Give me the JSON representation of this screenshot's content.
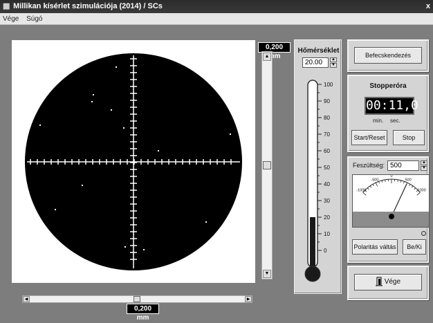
{
  "window": {
    "title": "Millikan kísérlet szimulációja (2014)  /  SCs",
    "close_glyph": "x"
  },
  "menu": {
    "items": [
      "Vége",
      "Súgó"
    ]
  },
  "scale_labels": {
    "vertical": "0,200 mm",
    "horizontal": "0,200 mm"
  },
  "temperature": {
    "title": "Hőmérséklet",
    "value": "20.00",
    "ticks": [
      "100",
      "90",
      "80",
      "70",
      "60",
      "50",
      "40",
      "30",
      "20",
      "10",
      "0"
    ],
    "level": 20
  },
  "calibration": {
    "button_label": "Befecskendezés"
  },
  "stopwatch": {
    "title": "Stopperóra",
    "display": "00:11,0",
    "min_label": "min.",
    "sec_label": "sec.",
    "start_label": "Start/Reset",
    "stop_label": "Stop"
  },
  "voltage": {
    "label": "Feszültség:",
    "value": "500",
    "scale": [
      "-1000",
      "-500",
      "0",
      "500",
      "1000"
    ],
    "reading": 500,
    "polarity_label": "Polaritás váltás",
    "onoff_label": "Be/Ki"
  },
  "exit": {
    "label": "Vége"
  },
  "colors": {
    "background": "#7d7d7d",
    "panel": "#d4d4d4",
    "lcd": "#000000",
    "thermo_fill": "#1a1a1a"
  },
  "icons": {
    "app": "app-icon",
    "exit": "door-exit-icon"
  }
}
